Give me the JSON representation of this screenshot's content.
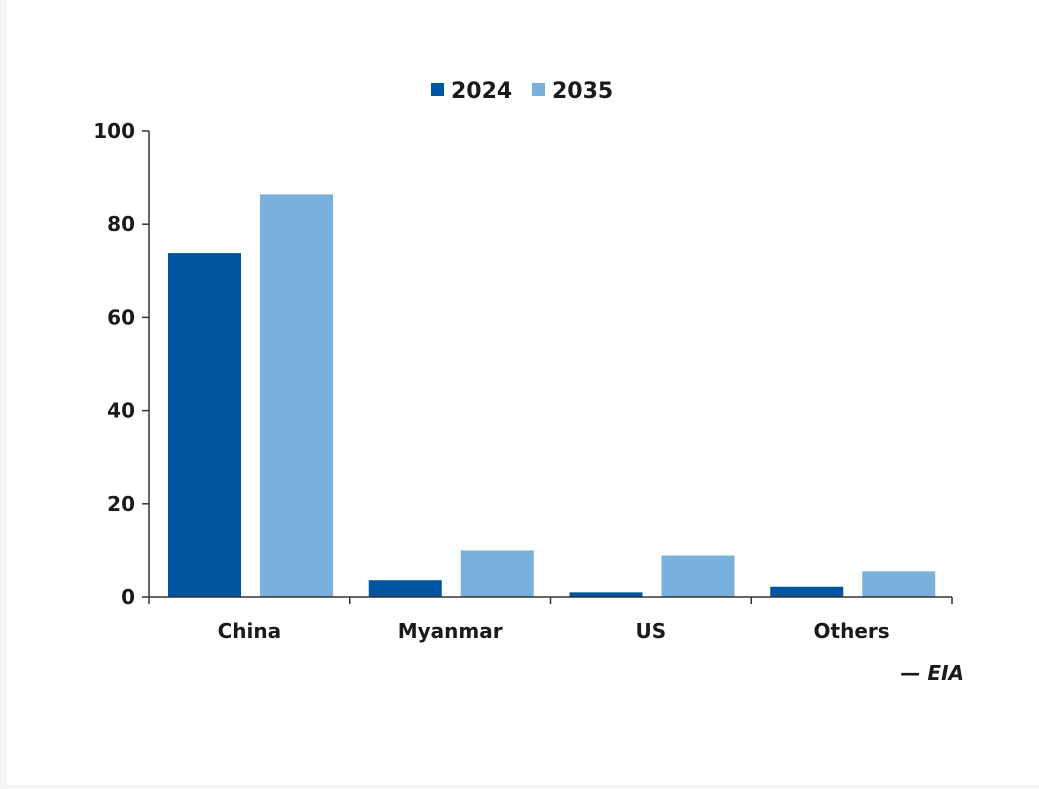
{
  "chart_data": {
    "type": "bar",
    "categories": [
      "China",
      "Myanmar",
      "US",
      "Others"
    ],
    "series": [
      {
        "name": "2024",
        "values": [
          73.8,
          3.6,
          1.0,
          2.2
        ],
        "color": "#0055a2"
      },
      {
        "name": "2035",
        "values": [
          86.4,
          10.0,
          8.9,
          5.5
        ],
        "color": "#79b1dc"
      }
    ],
    "ylim": [
      0,
      100
    ],
    "yticks": [
      0,
      20,
      40,
      60,
      80,
      100
    ],
    "grid": false,
    "legend_position": "top-center",
    "source_note": "— EIA"
  }
}
